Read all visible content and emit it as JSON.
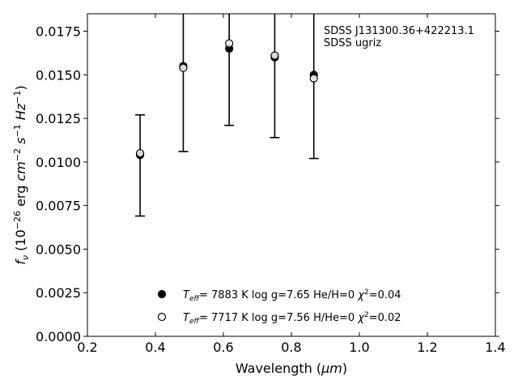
{
  "chart_data": {
    "type": "scatter",
    "annotation_lines": [
      "SDSS J131300.36+422213.1",
      "SDSS ugriz"
    ],
    "xlabel": {
      "main": "Wavelength (",
      "mu": "μm",
      "close": ")"
    },
    "ylabel": {
      "f": "f",
      "nu": "ν",
      "a": " (10",
      "e1": "−26",
      "b": " erg ",
      "cm": "cm",
      "e2": "−2",
      "s": "s",
      "e3": "−1",
      "hz": "Hz",
      "e4": "−1",
      "c": ")"
    },
    "xlim": [
      0.2,
      1.4
    ],
    "ylim": [
      0.0,
      0.0185
    ],
    "xticks": [
      "0.2",
      "0.4",
      "0.6",
      "0.8",
      "1.0",
      "1.2",
      "1.4"
    ],
    "yticks": [
      "0.0000",
      "0.0025",
      "0.0050",
      "0.0075",
      "0.0100",
      "0.0125",
      "0.0150",
      "0.0175"
    ],
    "observed": {
      "x": [
        0.355,
        0.482,
        0.617,
        0.751,
        0.866
      ],
      "y": [
        0.0104,
        0.0155,
        0.0165,
        0.016,
        0.015
      ],
      "err_low": [
        0.0069,
        0.0106,
        0.0121,
        0.0114,
        0.0102
      ],
      "err_high": [
        0.0127,
        0.0188,
        0.0188,
        0.0188,
        0.0188
      ]
    },
    "series": [
      {
        "marker": "filled",
        "values": [
          0.0104,
          0.0155,
          0.0165,
          0.016,
          0.015
        ],
        "legend": {
          "teff_label": "T",
          "teff_sub": "eff",
          "rest": "=  7883 K  log g=7.65  He/H=0  ",
          "chi": "χ",
          "chi_sup": "2",
          "chi_val": "=0.04"
        }
      },
      {
        "marker": "open",
        "values": [
          0.0105,
          0.0154,
          0.0168,
          0.0161,
          0.0148
        ],
        "legend": {
          "teff_label": "T",
          "teff_sub": "eff",
          "rest": "=  7717 K  log g=7.56  H/He=0  ",
          "chi": "χ",
          "chi_sup": "2",
          "chi_val": "=0.02"
        }
      }
    ],
    "legend_position": "lower-center"
  }
}
